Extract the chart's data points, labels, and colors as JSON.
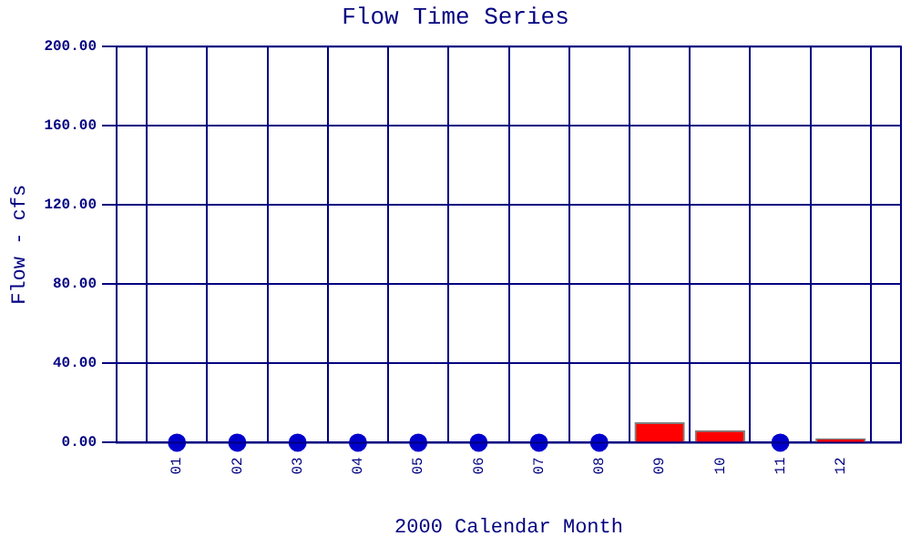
{
  "chart_data": {
    "type": "bar",
    "title": "Flow Time Series",
    "xlabel": "2000 Calendar Month",
    "ylabel": "Flow - cfs",
    "categories": [
      "01",
      "02",
      "03",
      "04",
      "05",
      "06",
      "07",
      "08",
      "09",
      "10",
      "11",
      "12"
    ],
    "series": [
      {
        "color": "#ff0000",
        "values": [
          null,
          null,
          null,
          null,
          null,
          null,
          null,
          null,
          10,
          6,
          null,
          2
        ]
      },
      {
        "type": "scatter",
        "color": "#0000cc",
        "marker": "circle",
        "values": [
          0,
          0,
          0,
          0,
          0,
          0,
          0,
          0,
          null,
          null,
          0,
          null
        ]
      }
    ],
    "ylim": [
      0,
      200
    ],
    "yticks": [
      {
        "value": 0,
        "label": "0.00"
      },
      {
        "value": 40,
        "label": "40.00"
      },
      {
        "value": 80,
        "label": "80.00"
      },
      {
        "value": 120,
        "label": "120.00"
      },
      {
        "value": 160,
        "label": "160.00"
      },
      {
        "value": 200,
        "label": "200.00"
      }
    ],
    "grid": true,
    "legend": false
  }
}
